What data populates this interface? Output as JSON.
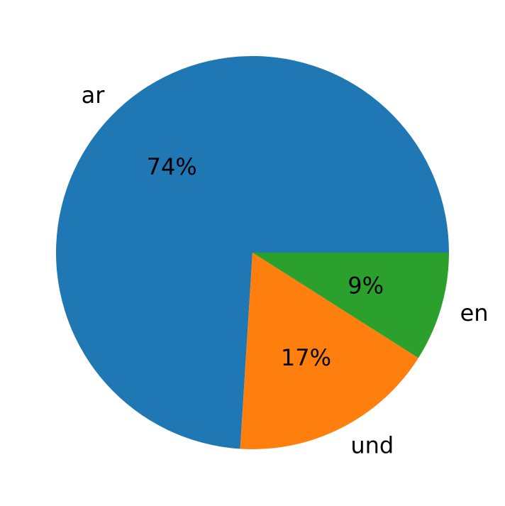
{
  "chart_data": {
    "type": "pie",
    "categories": [
      "ar",
      "und",
      "en"
    ],
    "values": [
      74,
      17,
      9
    ],
    "value_labels": [
      "74%",
      "17%",
      "9%"
    ],
    "colors": [
      "#1f77b4",
      "#ff7f0e",
      "#2ca02c"
    ],
    "title": "",
    "legend": "none"
  }
}
